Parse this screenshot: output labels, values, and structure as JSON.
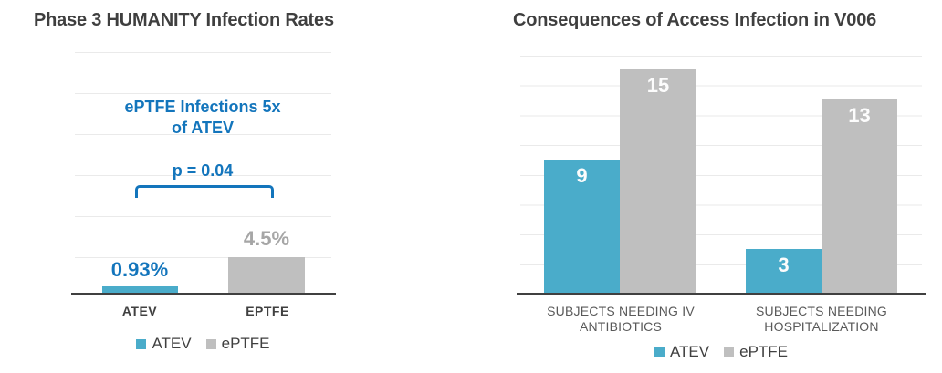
{
  "colors": {
    "atev_blue": "#4AACCA",
    "eptfe_gray": "#BFBFBF",
    "accent_blue_text": "#1375BC",
    "gray_value_label": "#A6A6A6",
    "title_text": "#3F3F3F",
    "axis_line": "#404040",
    "gridline": "#EAEAEA",
    "bar_inner_label": "#FCFCFC"
  },
  "chart_data": [
    {
      "type": "bar",
      "title": "Phase 3 HUMANITY Infection Rates",
      "categories": [
        "ATEV",
        "EPTFE"
      ],
      "values": [
        0.93,
        4.5
      ],
      "value_labels": [
        "0.93%",
        "4.5%"
      ],
      "ylim": [
        0,
        30
      ],
      "gridline_step": 5,
      "grid": true,
      "legend": [
        "ATEV",
        "ePTFE"
      ],
      "legend_position": "bottom",
      "series_colors": [
        "#4AACCA",
        "#BFBFBF"
      ],
      "annotation": {
        "lines": [
          "ePTFE Infections 5x",
          "of ATEV"
        ]
      },
      "p_value": "p = 0.04"
    },
    {
      "type": "bar",
      "title": "Consequences of Access Infection in V006",
      "categories": [
        "SUBJECTS NEEDING IV ANTIBIOTICS",
        "SUBJECTS NEEDING HOSPITALIZATION"
      ],
      "category_lines": [
        [
          "SUBJECTS NEEDING IV",
          "ANTIBIOTICS"
        ],
        [
          "SUBJECTS NEEDING",
          "HOSPITALIZATION"
        ]
      ],
      "series": [
        {
          "name": "ATEV",
          "values": [
            9,
            3
          ],
          "color": "#4AACCA"
        },
        {
          "name": "ePTFE",
          "values": [
            15,
            13
          ],
          "color": "#BFBFBF"
        }
      ],
      "ylim": [
        0,
        16
      ],
      "gridline_step": 2,
      "grid": true,
      "legend": [
        "ATEV",
        "ePTFE"
      ],
      "legend_position": "bottom"
    }
  ]
}
